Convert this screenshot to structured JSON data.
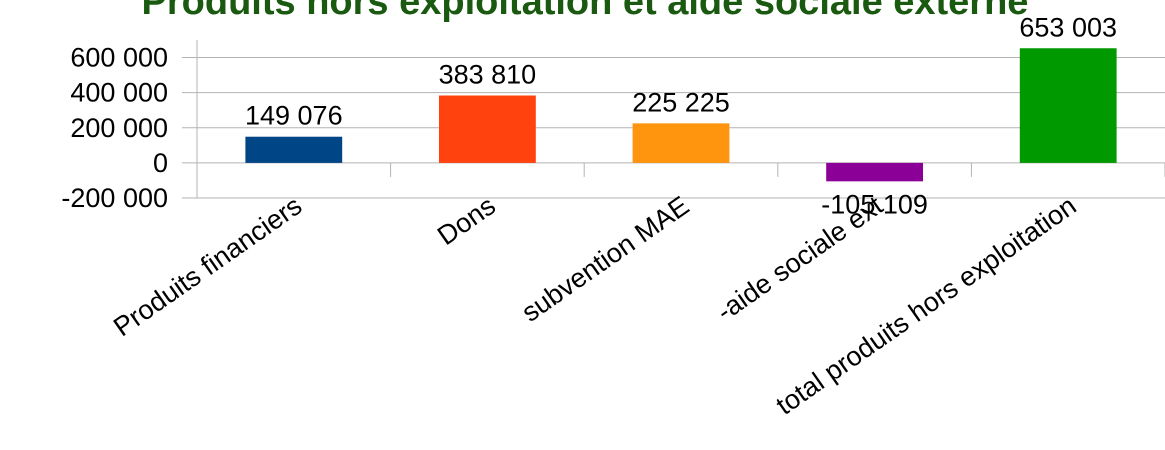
{
  "chart_data": {
    "type": "bar",
    "title": "Produits hors exploitation et aide sociale externe",
    "categories": [
      "Produits financiers",
      "Dons",
      "subvention MAE",
      "-aide sociale ext",
      "total produits hors exploitation"
    ],
    "values": [
      149076,
      383810,
      225225,
      -105109,
      653003
    ],
    "value_labels": [
      "149 076",
      "383 810",
      "225 225",
      "-105 109",
      "653 003"
    ],
    "colors": [
      "#004586",
      "#ff420e",
      "#ff950e",
      "#8b0096",
      "#009900"
    ],
    "ylim": [
      -200000,
      700000
    ],
    "yticks": [
      {
        "value": -200000,
        "label": "-200 000"
      },
      0,
      {
        "value": 200000,
        "label": "200 000"
      },
      {
        "value": 400000,
        "label": "400 000"
      },
      {
        "value": 600000,
        "label": "600 000"
      }
    ],
    "grid": true
  }
}
